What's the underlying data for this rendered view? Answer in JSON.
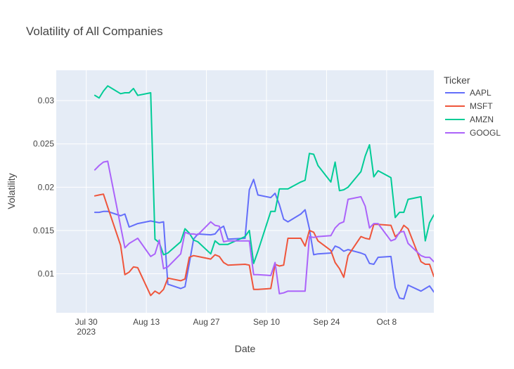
{
  "chart_data": {
    "type": "line",
    "title": "Volatility of All Companies",
    "xlabel": "Date",
    "ylabel": "Volatility",
    "legend_title": "Ticker",
    "legend_position": "right",
    "grid": true,
    "xlim": [
      "2023-07-23",
      "2023-10-19"
    ],
    "ylim": [
      0.0055,
      0.0335
    ],
    "x_ticks": [
      {
        "date": "2023-07-30",
        "label": "Jul 30",
        "sublabel": "2023"
      },
      {
        "date": "2023-08-13",
        "label": "Aug 13",
        "sublabel": ""
      },
      {
        "date": "2023-08-27",
        "label": "Aug 27",
        "sublabel": ""
      },
      {
        "date": "2023-09-10",
        "label": "Sep 10",
        "sublabel": ""
      },
      {
        "date": "2023-09-24",
        "label": "Sep 24",
        "sublabel": ""
      },
      {
        "date": "2023-10-08",
        "label": "Oct 8",
        "sublabel": ""
      }
    ],
    "y_ticks": [
      {
        "value": 0.01,
        "label": "0.01"
      },
      {
        "value": 0.015,
        "label": "0.015"
      },
      {
        "value": 0.02,
        "label": "0.02"
      },
      {
        "value": 0.025,
        "label": "0.025"
      },
      {
        "value": 0.03,
        "label": "0.03"
      }
    ],
    "x": [
      "2023-08-01",
      "2023-08-02",
      "2023-08-03",
      "2023-08-04",
      "2023-08-07",
      "2023-08-08",
      "2023-08-09",
      "2023-08-10",
      "2023-08-11",
      "2023-08-14",
      "2023-08-15",
      "2023-08-16",
      "2023-08-17",
      "2023-08-18",
      "2023-08-21",
      "2023-08-22",
      "2023-08-23",
      "2023-08-24",
      "2023-08-25",
      "2023-08-28",
      "2023-08-29",
      "2023-08-30",
      "2023-08-31",
      "2023-09-01",
      "2023-09-05",
      "2023-09-06",
      "2023-09-07",
      "2023-09-08",
      "2023-09-11",
      "2023-09-12",
      "2023-09-13",
      "2023-09-14",
      "2023-09-15",
      "2023-09-18",
      "2023-09-19",
      "2023-09-20",
      "2023-09-21",
      "2023-09-22",
      "2023-09-25",
      "2023-09-26",
      "2023-09-27",
      "2023-09-28",
      "2023-09-29",
      "2023-10-02",
      "2023-10-03",
      "2023-10-04",
      "2023-10-05",
      "2023-10-06",
      "2023-10-09",
      "2023-10-10",
      "2023-10-11",
      "2023-10-12",
      "2023-10-13",
      "2023-10-16",
      "2023-10-17",
      "2023-10-18",
      "2023-10-19"
    ],
    "series": [
      {
        "name": "AAPL",
        "color": "#636efa",
        "values": [
          0.0171,
          0.0171,
          0.0172,
          0.0172,
          0.0167,
          0.0169,
          0.0154,
          0.0156,
          0.0158,
          0.0161,
          0.016,
          0.0159,
          0.016,
          0.0088,
          0.0083,
          0.0085,
          0.0112,
          0.014,
          0.0146,
          0.0145,
          0.0146,
          0.0152,
          0.0155,
          0.014,
          0.0141,
          0.0197,
          0.0209,
          0.0191,
          0.0188,
          0.0193,
          0.018,
          0.0163,
          0.016,
          0.0169,
          0.0174,
          0.0152,
          0.0122,
          0.0123,
          0.0124,
          0.0132,
          0.013,
          0.0126,
          0.0128,
          0.0124,
          0.0122,
          0.0112,
          0.0111,
          0.0119,
          0.012,
          0.0084,
          0.0072,
          0.0071,
          0.0087,
          0.008,
          0.0083,
          0.0086,
          0.0079
        ]
      },
      {
        "name": "MSFT",
        "color": "#ef553b",
        "values": [
          0.019,
          0.0191,
          0.0192,
          0.0177,
          0.0133,
          0.0099,
          0.0102,
          0.0108,
          0.0107,
          0.0075,
          0.008,
          0.0077,
          0.0082,
          0.0095,
          0.0092,
          0.0094,
          0.0119,
          0.0121,
          0.012,
          0.0117,
          0.0122,
          0.012,
          0.0113,
          0.011,
          0.0111,
          0.011,
          0.0082,
          0.0082,
          0.0083,
          0.0111,
          0.0109,
          0.011,
          0.0141,
          0.0141,
          0.0132,
          0.015,
          0.0148,
          0.0138,
          0.0127,
          0.0113,
          0.0106,
          0.0096,
          0.0121,
          0.0143,
          0.0141,
          0.014,
          0.0157,
          0.0157,
          0.0156,
          0.0143,
          0.0147,
          0.0156,
          0.0152,
          0.0114,
          0.0111,
          0.0111,
          0.0097
        ]
      },
      {
        "name": "AMZN",
        "color": "#00cc96",
        "values": [
          0.0306,
          0.0303,
          0.0311,
          0.0317,
          0.0308,
          0.0309,
          0.0309,
          0.0314,
          0.0306,
          0.0309,
          0.014,
          0.0136,
          0.0122,
          0.0124,
          0.0137,
          0.0152,
          0.0147,
          0.0139,
          0.0137,
          0.0123,
          0.0138,
          0.0134,
          0.0134,
          0.0134,
          0.0143,
          0.015,
          0.0112,
          0.0126,
          0.0172,
          0.0172,
          0.0198,
          0.0198,
          0.0198,
          0.0206,
          0.0208,
          0.0239,
          0.0238,
          0.0225,
          0.0206,
          0.0229,
          0.0196,
          0.0197,
          0.02,
          0.0218,
          0.0236,
          0.0249,
          0.0212,
          0.0219,
          0.0211,
          0.0165,
          0.0171,
          0.0171,
          0.0186,
          0.0189,
          0.0138,
          0.0159,
          0.0168
        ]
      },
      {
        "name": "GOOGL",
        "color": "#ab63fa",
        "values": [
          0.022,
          0.0225,
          0.0229,
          0.023,
          0.0155,
          0.013,
          0.0135,
          0.0138,
          0.0141,
          0.012,
          0.0123,
          0.0139,
          0.0106,
          0.0108,
          0.0123,
          0.0148,
          0.0146,
          0.0146,
          0.0145,
          0.016,
          0.0156,
          0.0155,
          0.0137,
          0.0138,
          0.0138,
          0.0138,
          0.0099,
          0.0099,
          0.0098,
          0.0113,
          0.0077,
          0.0078,
          0.008,
          0.008,
          0.008,
          0.0143,
          0.0142,
          0.0143,
          0.0144,
          0.0153,
          0.0158,
          0.016,
          0.0186,
          0.0189,
          0.0178,
          0.0153,
          0.0158,
          0.0158,
          0.0138,
          0.014,
          0.0148,
          0.0149,
          0.0135,
          0.0121,
          0.0119,
          0.0119,
          0.0114
        ]
      }
    ]
  }
}
